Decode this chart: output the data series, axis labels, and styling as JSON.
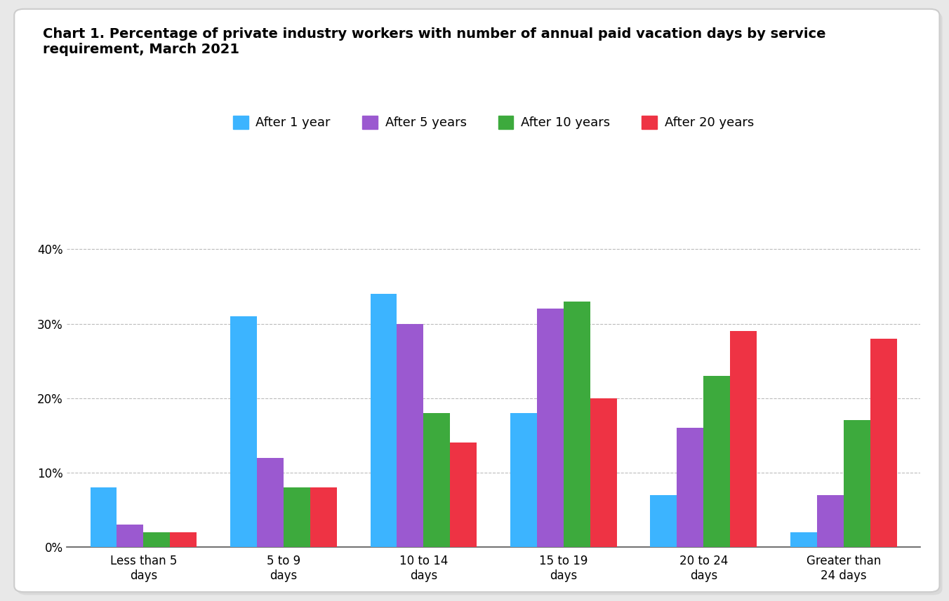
{
  "title_line1": "Chart 1. Percentage of private industry workers with number of annual paid vacation days by service",
  "title_line2": "requirement, March 2021",
  "categories": [
    "Less than 5\ndays",
    "5 to 9\ndays",
    "10 to 14\ndays",
    "15 to 19\ndays",
    "20 to 24\ndays",
    "Greater than\n24 days"
  ],
  "series": [
    {
      "label": "After 1 year",
      "color": "#3CB4FF",
      "values": [
        8,
        31,
        34,
        18,
        7,
        2
      ]
    },
    {
      "label": "After 5 years",
      "color": "#9B59D0",
      "values": [
        3,
        12,
        30,
        32,
        16,
        7
      ]
    },
    {
      "label": "After 10 years",
      "color": "#3DAA3D",
      "values": [
        2,
        8,
        18,
        33,
        23,
        17
      ]
    },
    {
      "label": "After 20 years",
      "color": "#EE3344",
      "values": [
        2,
        8,
        14,
        20,
        29,
        28
      ]
    }
  ],
  "ylim": [
    0,
    42
  ],
  "yticks": [
    0,
    10,
    20,
    30,
    40
  ],
  "ytick_labels": [
    "0%",
    "10%",
    "20%",
    "30%",
    "40%"
  ],
  "outer_bg": "#e8e8e8",
  "card_bg": "#ffffff",
  "title_fontsize": 14,
  "legend_fontsize": 13,
  "tick_fontsize": 12,
  "bar_width": 0.19
}
